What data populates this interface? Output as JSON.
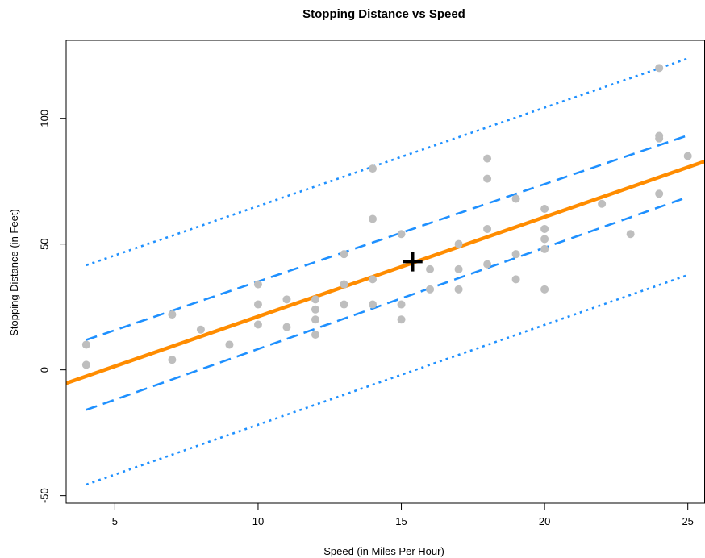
{
  "chart_data": {
    "type": "scatter",
    "title": "Stopping Distance vs Speed",
    "xlabel": "Speed (in Miles Per Hour)",
    "ylabel": "Stopping Distance (in Feet)",
    "xlim": [
      3.3,
      25.6
    ],
    "ylim": [
      -53,
      131
    ],
    "x_ticks": [
      5,
      10,
      15,
      20,
      25
    ],
    "y_ticks": [
      -50,
      0,
      50,
      100
    ],
    "x_tick_labels": [
      "5",
      "10",
      "15",
      "20",
      "25"
    ],
    "y_tick_labels": [
      "-50",
      "0",
      "50",
      "100"
    ],
    "grid": false,
    "points": {
      "color": "#bebebe",
      "x": [
        4,
        4,
        7,
        7,
        8,
        9,
        10,
        10,
        10,
        11,
        11,
        12,
        12,
        12,
        12,
        13,
        13,
        13,
        13,
        14,
        14,
        14,
        14,
        15,
        15,
        15,
        16,
        16,
        17,
        17,
        17,
        18,
        18,
        18,
        18,
        19,
        19,
        19,
        20,
        20,
        20,
        20,
        20,
        22,
        23,
        24,
        24,
        24,
        24,
        25
      ],
      "y": [
        2,
        10,
        4,
        22,
        16,
        10,
        18,
        26,
        34,
        17,
        28,
        14,
        20,
        24,
        28,
        26,
        34,
        34,
        46,
        26,
        36,
        60,
        80,
        20,
        26,
        54,
        32,
        40,
        32,
        40,
        50,
        42,
        56,
        76,
        84,
        36,
        46,
        68,
        32,
        48,
        52,
        56,
        64,
        66,
        54,
        70,
        92,
        93,
        120,
        85
      ]
    },
    "series": [
      {
        "kind": "fit",
        "color": "#ff8c00",
        "x": [
          3.3,
          25.6
        ],
        "y": [
          -5.3,
          82.9
        ]
      },
      {
        "kind": "confidence-upper",
        "color": "#1e90ff",
        "x": [
          4,
          25
        ],
        "y": [
          11.9,
          93.2
        ]
      },
      {
        "kind": "confidence-lower",
        "color": "#1e90ff",
        "x": [
          4,
          25
        ],
        "y": [
          -15.9,
          68.7
        ]
      },
      {
        "kind": "prediction-upper",
        "color": "#1e90ff",
        "x": [
          4,
          25
        ],
        "y": [
          41.6,
          123.8
        ]
      },
      {
        "kind": "prediction-lower",
        "color": "#1e90ff",
        "x": [
          4,
          25
        ],
        "y": [
          -45.6,
          37.7
        ]
      }
    ],
    "mean_point": {
      "x": 15.4,
      "y": 42.98,
      "color": "#000000"
    }
  }
}
